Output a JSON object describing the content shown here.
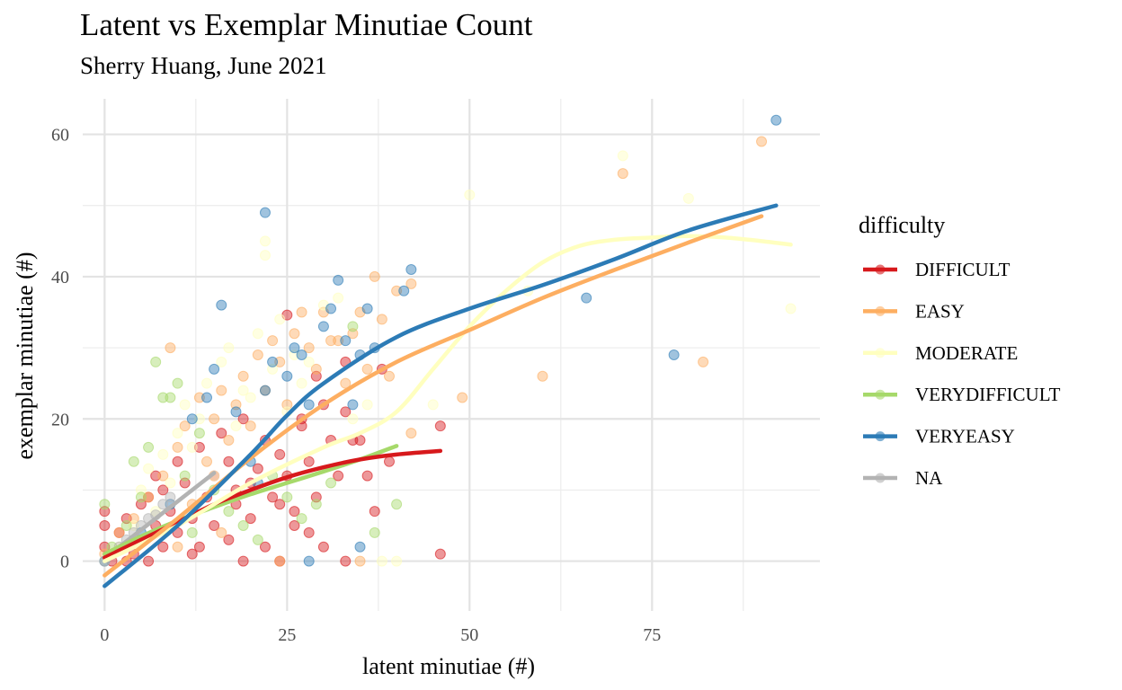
{
  "chart_data": {
    "type": "scatter",
    "title": "Latent vs Exemplar Minutiae Count",
    "subtitle": "Sherry Huang, June 2021",
    "xlabel": "latent minutiae (#)",
    "ylabel": "exemplar minutiae (#)",
    "xlim": [
      -3,
      98
    ],
    "ylim": [
      -7,
      65
    ],
    "x_ticks": [
      0,
      25,
      50,
      75
    ],
    "y_ticks": [
      0,
      20,
      40,
      60
    ],
    "x_tick_labels": [
      "0",
      "25",
      "50",
      "75"
    ],
    "y_tick_labels": [
      "0",
      "20",
      "40",
      "60"
    ],
    "grid": true,
    "legend": {
      "title": "difficulty",
      "position": "right"
    },
    "point_alpha": 0.45,
    "series": [
      {
        "name": "DIFFICULT",
        "color": "#d7191c",
        "points": [
          [
            0,
            5
          ],
          [
            0,
            7
          ],
          [
            0,
            2
          ],
          [
            1,
            0
          ],
          [
            2,
            4
          ],
          [
            3,
            6
          ],
          [
            4,
            1
          ],
          [
            5,
            8
          ],
          [
            5,
            3
          ],
          [
            6,
            9
          ],
          [
            7,
            5
          ],
          [
            7,
            12
          ],
          [
            8,
            2
          ],
          [
            8,
            10
          ],
          [
            9,
            7
          ],
          [
            10,
            14
          ],
          [
            10,
            4
          ],
          [
            11,
            11
          ],
          [
            12,
            6
          ],
          [
            13,
            16
          ],
          [
            13,
            2
          ],
          [
            14,
            9
          ],
          [
            15,
            12
          ],
          [
            15,
            5
          ],
          [
            16,
            18
          ],
          [
            17,
            3
          ],
          [
            17,
            14
          ],
          [
            18,
            8
          ],
          [
            19,
            20
          ],
          [
            19,
            0
          ],
          [
            20,
            11
          ],
          [
            20,
            6
          ],
          [
            21,
            13
          ],
          [
            22,
            2
          ],
          [
            22,
            17
          ],
          [
            23,
            9
          ],
          [
            24,
            15
          ],
          [
            24,
            0
          ],
          [
            25,
            34.6
          ],
          [
            25,
            12
          ],
          [
            26,
            7
          ],
          [
            27,
            20
          ],
          [
            27,
            19
          ],
          [
            28,
            14
          ],
          [
            29,
            26
          ],
          [
            29,
            9
          ],
          [
            30,
            22
          ],
          [
            31,
            17
          ],
          [
            32,
            12
          ],
          [
            33,
            28
          ],
          [
            33,
            21
          ],
          [
            34,
            17
          ],
          [
            35,
            17
          ],
          [
            36,
            12
          ],
          [
            37,
            7
          ],
          [
            38,
            27
          ],
          [
            39,
            14
          ],
          [
            46,
            19
          ],
          [
            46,
            1
          ],
          [
            33,
            0
          ],
          [
            30,
            2
          ],
          [
            28,
            4
          ],
          [
            26,
            5
          ],
          [
            24,
            8
          ],
          [
            18,
            10
          ],
          [
            12,
            1
          ],
          [
            6,
            0
          ],
          [
            3,
            0
          ]
        ],
        "trend": [
          [
            0,
            0.5
          ],
          [
            5,
            3
          ],
          [
            10,
            5.5
          ],
          [
            15,
            8
          ],
          [
            20,
            10
          ],
          [
            25,
            11.8
          ],
          [
            30,
            13.2
          ],
          [
            35,
            14.3
          ],
          [
            40,
            15
          ],
          [
            46,
            15.5
          ]
        ]
      },
      {
        "name": "EASY",
        "color": "#fdae61",
        "points": [
          [
            0,
            1
          ],
          [
            2,
            4
          ],
          [
            4,
            6
          ],
          [
            6,
            9
          ],
          [
            8,
            12
          ],
          [
            9,
            30
          ],
          [
            10,
            16
          ],
          [
            11,
            19
          ],
          [
            12,
            8
          ],
          [
            13,
            23
          ],
          [
            14,
            14
          ],
          [
            15,
            20
          ],
          [
            16,
            24
          ],
          [
            17,
            17
          ],
          [
            18,
            22
          ],
          [
            19,
            26
          ],
          [
            20,
            19
          ],
          [
            21,
            29
          ],
          [
            22,
            24
          ],
          [
            23,
            31
          ],
          [
            24,
            28
          ],
          [
            25,
            22
          ],
          [
            26,
            32
          ],
          [
            27,
            35
          ],
          [
            28,
            30
          ],
          [
            29,
            27
          ],
          [
            30,
            35
          ],
          [
            31,
            31
          ],
          [
            32,
            31
          ],
          [
            33,
            25
          ],
          [
            34,
            32
          ],
          [
            35,
            35
          ],
          [
            36,
            27
          ],
          [
            37,
            40
          ],
          [
            38,
            34
          ],
          [
            39,
            26
          ],
          [
            40,
            38
          ],
          [
            42,
            39
          ],
          [
            42,
            18
          ],
          [
            49,
            23
          ],
          [
            60,
            26
          ],
          [
            71,
            54.5
          ],
          [
            82,
            28
          ],
          [
            90,
            59
          ],
          [
            35,
            0
          ],
          [
            24,
            0
          ],
          [
            16,
            4
          ],
          [
            10,
            2
          ]
        ],
        "trend": [
          [
            0,
            -2
          ],
          [
            10,
            6
          ],
          [
            20,
            14.5
          ],
          [
            30,
            22
          ],
          [
            40,
            28
          ],
          [
            50,
            32.5
          ],
          [
            60,
            37
          ],
          [
            70,
            41
          ],
          [
            80,
            44.8
          ],
          [
            90,
            48.5
          ]
        ]
      },
      {
        "name": "MODERATE",
        "color": "#ffffbf",
        "points": [
          [
            0,
            0
          ],
          [
            2,
            2
          ],
          [
            4,
            5
          ],
          [
            5,
            10
          ],
          [
            6,
            13
          ],
          [
            7,
            7
          ],
          [
            8,
            15
          ],
          [
            9,
            11
          ],
          [
            10,
            18
          ],
          [
            11,
            22
          ],
          [
            12,
            16
          ],
          [
            13,
            20
          ],
          [
            14,
            25
          ],
          [
            15,
            12
          ],
          [
            16,
            28
          ],
          [
            17,
            30
          ],
          [
            18,
            19
          ],
          [
            19,
            24
          ],
          [
            20,
            23
          ],
          [
            21,
            32
          ],
          [
            22,
            45
          ],
          [
            22,
            43
          ],
          [
            23,
            27
          ],
          [
            24,
            34
          ],
          [
            25,
            21
          ],
          [
            26,
            29
          ],
          [
            27,
            25
          ],
          [
            28,
            28
          ],
          [
            30,
            36
          ],
          [
            32,
            37
          ],
          [
            34,
            20
          ],
          [
            36,
            22
          ],
          [
            38,
            0
          ],
          [
            40,
            0
          ],
          [
            45,
            22
          ],
          [
            50,
            51.5
          ],
          [
            58,
            38
          ],
          [
            71,
            57
          ],
          [
            80,
            51
          ],
          [
            94,
            35.5
          ]
        ],
        "trend": [
          [
            0,
            0
          ],
          [
            10,
            5
          ],
          [
            20,
            11
          ],
          [
            30,
            16
          ],
          [
            35,
            18
          ],
          [
            40,
            21
          ],
          [
            45,
            27
          ],
          [
            50,
            33
          ],
          [
            55,
            38
          ],
          [
            60,
            42
          ],
          [
            65,
            44.3
          ],
          [
            70,
            45.2
          ],
          [
            75,
            45.5
          ],
          [
            80,
            45.7
          ],
          [
            85,
            45.5
          ],
          [
            90,
            45
          ],
          [
            94,
            44.5
          ]
        ]
      },
      {
        "name": "VERYDIFFICULT",
        "color": "#a6d96a",
        "points": [
          [
            0,
            8
          ],
          [
            1,
            2
          ],
          [
            3,
            5
          ],
          [
            4,
            14
          ],
          [
            5,
            9
          ],
          [
            6,
            16
          ],
          [
            7,
            28
          ],
          [
            8,
            23
          ],
          [
            9,
            23
          ],
          [
            10,
            25
          ],
          [
            11,
            12
          ],
          [
            12,
            4
          ],
          [
            13,
            18
          ],
          [
            15,
            10
          ],
          [
            17,
            7
          ],
          [
            19,
            5
          ],
          [
            21,
            3
          ],
          [
            23,
            12
          ],
          [
            25,
            9
          ],
          [
            27,
            6
          ],
          [
            29,
            8
          ],
          [
            31,
            11
          ],
          [
            34,
            33
          ],
          [
            37,
            4
          ],
          [
            40,
            8
          ]
        ],
        "trend": [
          [
            0,
            1
          ],
          [
            5,
            3.5
          ],
          [
            10,
            5.7
          ],
          [
            15,
            7.6
          ],
          [
            20,
            9.4
          ],
          [
            25,
            11
          ],
          [
            30,
            12.6
          ],
          [
            35,
            14.3
          ],
          [
            40,
            16.2
          ]
        ]
      },
      {
        "name": "VERYEASY",
        "color": "#2c7bb6",
        "points": [
          [
            0,
            0
          ],
          [
            5,
            4
          ],
          [
            9,
            8
          ],
          [
            12,
            20
          ],
          [
            14,
            23
          ],
          [
            15,
            27
          ],
          [
            16,
            36
          ],
          [
            18,
            21
          ],
          [
            20,
            14
          ],
          [
            21,
            11
          ],
          [
            22,
            49
          ],
          [
            22,
            24
          ],
          [
            23,
            28
          ],
          [
            25,
            26
          ],
          [
            26,
            30
          ],
          [
            27,
            29
          ],
          [
            28,
            22
          ],
          [
            30,
            33
          ],
          [
            31,
            35.5
          ],
          [
            32,
            39.5
          ],
          [
            33,
            31
          ],
          [
            34,
            22
          ],
          [
            35,
            29
          ],
          [
            36,
            35.5
          ],
          [
            37,
            30
          ],
          [
            41,
            38
          ],
          [
            42,
            41
          ],
          [
            35,
            2
          ],
          [
            28,
            0
          ],
          [
            66,
            37
          ],
          [
            78,
            29
          ],
          [
            92,
            62
          ]
        ],
        "trend": [
          [
            0,
            -3.5
          ],
          [
            10,
            5
          ],
          [
            20,
            15
          ],
          [
            25,
            20.5
          ],
          [
            30,
            25
          ],
          [
            40,
            31.5
          ],
          [
            50,
            35.5
          ],
          [
            60,
            38.8
          ],
          [
            70,
            42.5
          ],
          [
            80,
            46.5
          ],
          [
            92,
            50
          ]
        ]
      },
      {
        "name": "NA",
        "color": "#b3b3b3",
        "points": [
          [
            0,
            0
          ],
          [
            1,
            1
          ],
          [
            2,
            2
          ],
          [
            3,
            3
          ],
          [
            4,
            4
          ],
          [
            5,
            5
          ],
          [
            6,
            6
          ],
          [
            7,
            6.5
          ],
          [
            8,
            8
          ],
          [
            9,
            9
          ]
        ],
        "trend": [
          [
            0,
            0.5
          ],
          [
            3,
            2.8
          ],
          [
            6,
            5.2
          ],
          [
            9,
            7.6
          ],
          [
            12,
            10
          ],
          [
            15,
            12.4
          ]
        ]
      }
    ]
  }
}
